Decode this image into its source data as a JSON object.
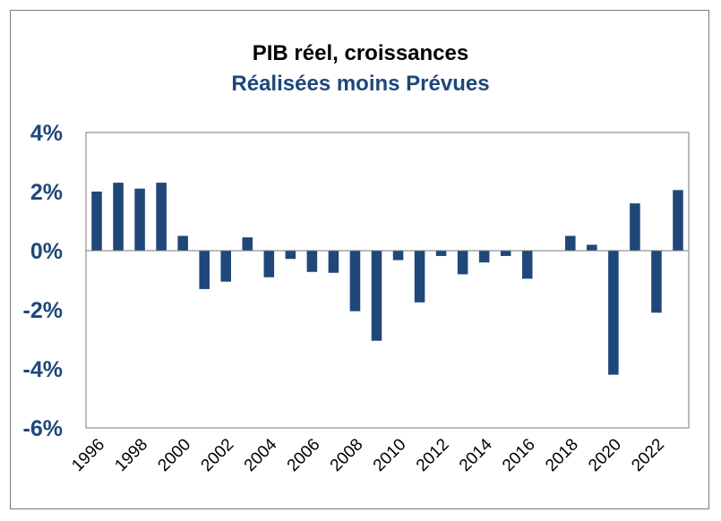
{
  "chart_data": {
    "type": "bar",
    "title": "PIB réel, croissances",
    "subtitle": "Réalisées moins Prévues",
    "xlabel": "",
    "ylabel": "",
    "categories": [
      "1996",
      "1997",
      "1998",
      "1999",
      "2000",
      "2001",
      "2002",
      "2003",
      "2004",
      "2005",
      "2006",
      "2007",
      "2008",
      "2009",
      "2010",
      "2011",
      "2012",
      "2013",
      "2014",
      "2015",
      "2016",
      "2017",
      "2018",
      "2019",
      "2020",
      "2021",
      "2022",
      "2023"
    ],
    "x_tick_labels": [
      "1996",
      "1998",
      "2000",
      "2002",
      "2004",
      "2006",
      "2008",
      "2010",
      "2012",
      "2014",
      "2016",
      "2018",
      "2020",
      "2022"
    ],
    "values": [
      2.0,
      2.3,
      2.1,
      2.3,
      0.5,
      -1.3,
      -1.05,
      0.45,
      -0.9,
      -0.28,
      -0.72,
      -0.75,
      -2.05,
      -3.05,
      -0.32,
      -1.75,
      -0.18,
      -0.8,
      -0.4,
      -0.18,
      -0.95,
      0.0,
      0.5,
      0.2,
      -4.2,
      1.6,
      -2.1,
      2.05
    ],
    "ylim": [
      -6,
      4
    ],
    "y_ticks": [
      4,
      2,
      0,
      -2,
      -4,
      -6
    ],
    "y_tick_format": "%",
    "grid": false,
    "colors": {
      "bar": "#1f477a",
      "title": "#000000",
      "subtitle": "#1f477a",
      "axis_labels": "#1f477a"
    }
  }
}
